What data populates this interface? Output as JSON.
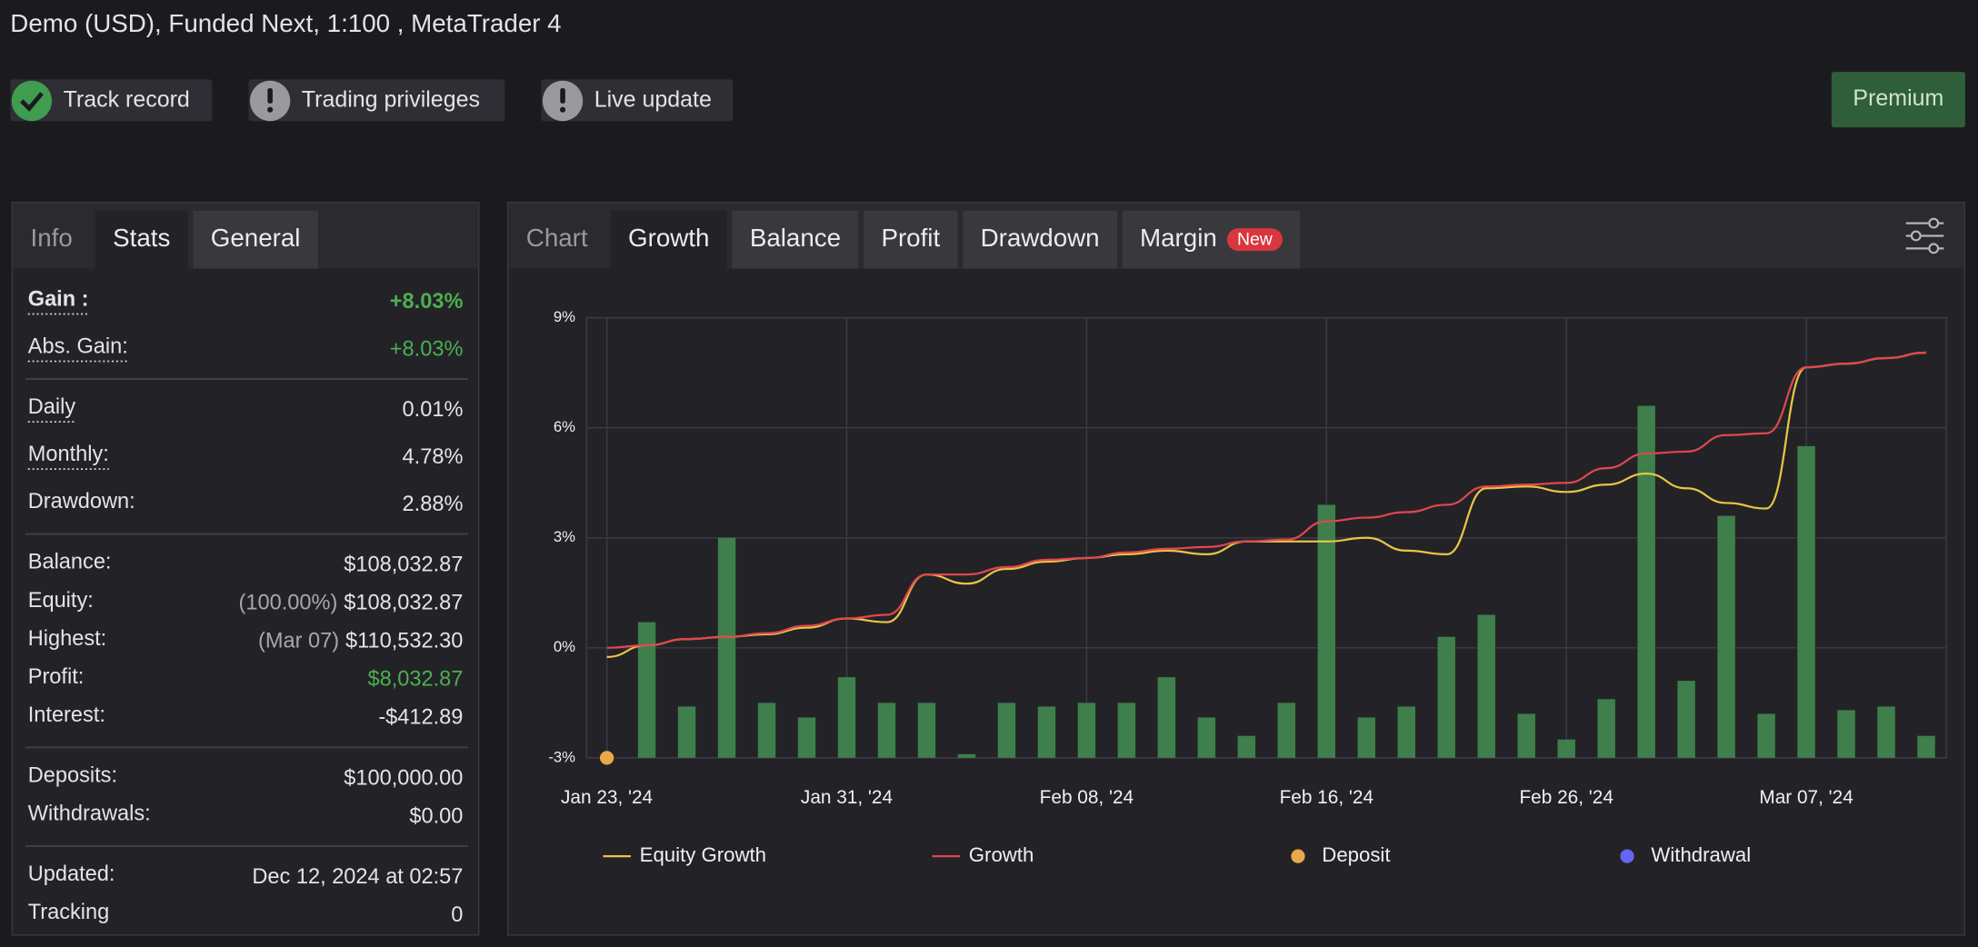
{
  "header": {
    "title": "Demo (USD), Funded Next, 1:100 , MetaTrader 4",
    "badges": [
      "Track record",
      "Trading privileges",
      "Live update"
    ],
    "button": "Premium"
  },
  "stats_panel": {
    "tabs": [
      "Info",
      "Stats",
      "General"
    ],
    "active_tab": 1,
    "sections": [
      [
        {
          "label": "Gain :",
          "value": "+8.03%",
          "color": "#4caf50",
          "bold": true,
          "underline": true
        },
        {
          "label": "Abs. Gain:",
          "value": "+8.03%",
          "color": "#4caf50",
          "underline": true
        }
      ],
      [
        {
          "label": "Daily",
          "value": "0.01%",
          "underline": true
        },
        {
          "label": "Monthly:",
          "value": "4.78%",
          "underline": true
        },
        {
          "label": "Drawdown:",
          "value": "2.88%"
        }
      ],
      [
        {
          "label": "Balance:",
          "value": "$108,032.87"
        },
        {
          "label": "Equity:",
          "note": "(100.00%)",
          "value": "$108,032.87"
        },
        {
          "label": "Highest:",
          "note": "(Mar 07)",
          "value": "$110,532.30"
        },
        {
          "label": "Profit:",
          "value": "$8,032.87",
          "color": "#4caf50"
        },
        {
          "label": "Interest:",
          "value": "-$412.89"
        }
      ],
      [
        {
          "label": "Deposits:",
          "value": "$100,000.00"
        },
        {
          "label": "Withdrawals:",
          "value": "$0.00"
        }
      ],
      [
        {
          "label": "Updated:",
          "value": "Dec 12, 2024 at 02:57"
        },
        {
          "label": "Tracking",
          "value": "0"
        }
      ]
    ]
  },
  "chart_panel": {
    "tabs": [
      "Chart",
      "Growth",
      "Balance",
      "Profit",
      "Drawdown",
      "Margin"
    ],
    "active_tab": 1,
    "tab_badge": "New"
  },
  "chart_data": {
    "type": "combo",
    "categories": [
      "Jan 23, '24",
      null,
      null,
      null,
      null,
      null,
      "Jan 31, '24",
      null,
      null,
      null,
      null,
      null,
      "Feb 08, '24",
      null,
      null,
      null,
      null,
      null,
      "Feb 16, '24",
      null,
      null,
      null,
      null,
      null,
      "Feb 26, '24",
      null,
      null,
      null,
      null,
      null,
      "Mar 07, '24",
      null,
      null,
      null
    ],
    "ylim": [
      -3,
      9
    ],
    "yticks": [
      {
        "value": -3,
        "label": "-3%"
      },
      {
        "value": 0,
        "label": "0%"
      },
      {
        "value": 3,
        "label": "3%"
      },
      {
        "value": 6,
        "label": "6%"
      },
      {
        "value": 9,
        "label": "9%"
      }
    ],
    "grid": true,
    "legend": "bottom",
    "series": [
      {
        "name": "Equity Growth",
        "type": "line",
        "color": "#e8c547",
        "values": [
          -0.25,
          0.07,
          0.24,
          0.3,
          0.37,
          0.55,
          0.8,
          0.7,
          2.0,
          1.75,
          2.15,
          2.35,
          2.45,
          2.55,
          2.65,
          2.55,
          2.9,
          2.9,
          2.9,
          3.0,
          2.65,
          2.55,
          4.35,
          4.4,
          4.25,
          4.45,
          4.75,
          4.35,
          3.95,
          3.8,
          7.65,
          7.75,
          7.9,
          8.05
        ]
      },
      {
        "name": "Growth",
        "type": "line",
        "color": "#e0474f",
        "values": [
          0,
          0.07,
          0.24,
          0.3,
          0.4,
          0.6,
          0.8,
          0.9,
          2.0,
          2.0,
          2.2,
          2.4,
          2.45,
          2.6,
          2.7,
          2.75,
          2.9,
          2.95,
          3.45,
          3.55,
          3.7,
          3.9,
          4.4,
          4.45,
          4.5,
          4.9,
          5.3,
          5.35,
          5.8,
          5.85,
          7.65,
          7.75,
          7.9,
          8.05
        ]
      },
      {
        "name": "Deposit",
        "type": "scatter",
        "color": "#e9a84a",
        "values": [
          -3,
          null,
          null,
          null,
          null,
          null,
          null,
          null,
          null,
          null,
          null,
          null,
          null,
          null,
          null,
          null,
          null,
          null,
          null,
          null,
          null,
          null,
          null,
          null,
          null,
          null,
          null,
          null,
          null,
          null,
          null,
          null,
          null,
          null
        ]
      },
      {
        "name": "Withdrawal",
        "type": "scatter",
        "color": "#6466f0",
        "values": [
          null,
          null,
          null,
          null,
          null,
          null,
          null,
          null,
          null,
          null,
          null,
          null,
          null,
          null,
          null,
          null,
          null,
          null,
          null,
          null,
          null,
          null,
          null,
          null,
          null,
          null,
          null,
          null,
          null,
          null,
          null,
          null,
          null,
          null
        ]
      },
      {
        "type": "bar",
        "color": "#3e7f4b",
        "values": [
          null,
          0.7,
          -1.6,
          3.0,
          -1.5,
          -1.9,
          -0.8,
          -1.5,
          -1.5,
          -2.9,
          -1.5,
          -1.6,
          -1.5,
          -1.5,
          -0.8,
          -1.9,
          -2.4,
          -1.5,
          3.9,
          -1.9,
          -1.6,
          0.3,
          0.9,
          -1.8,
          -2.5,
          -1.4,
          6.6,
          -0.9,
          3.6,
          -1.8,
          5.5,
          -1.7,
          -1.6,
          -2.4
        ]
      }
    ]
  }
}
